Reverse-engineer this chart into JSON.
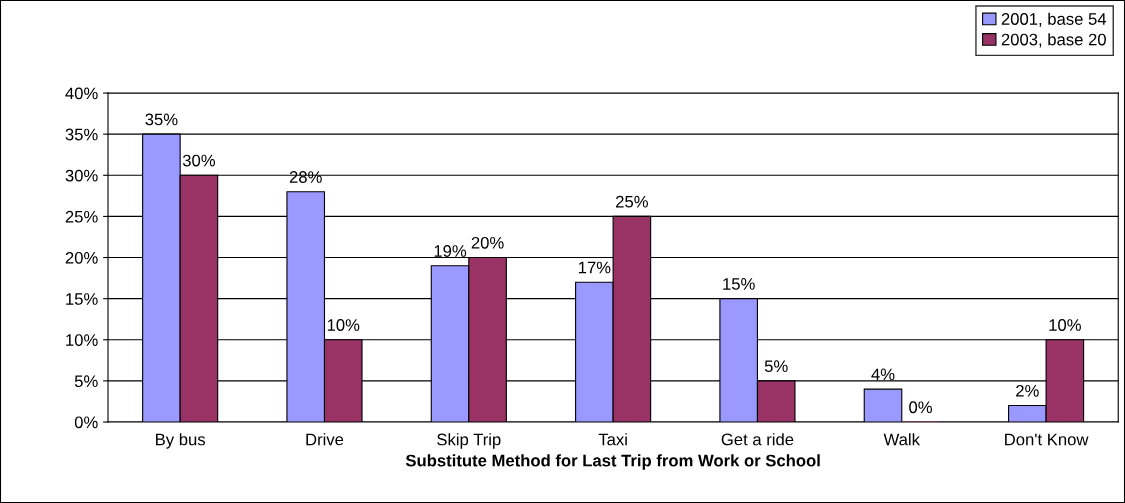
{
  "chart_data": {
    "type": "bar",
    "xlabel": "Substitute Method for Last Trip from Work or School",
    "categories": [
      "By bus",
      "Drive",
      "Skip Trip",
      "Taxi",
      "Get a ride",
      "Walk",
      "Don't Know"
    ],
    "series": [
      {
        "name": "2001, base 54",
        "color": "#9999ff",
        "values": [
          35,
          28,
          19,
          17,
          15,
          4,
          2
        ],
        "value_labels": [
          "35%",
          "28%",
          "19%",
          "17%",
          "15%",
          "4%",
          "2%"
        ]
      },
      {
        "name": "2003, base 20",
        "color": "#993366",
        "values": [
          30,
          10,
          20,
          25,
          5,
          0,
          10
        ],
        "value_labels": [
          "30%",
          "10%",
          "20%",
          "25%",
          "5%",
          "0%",
          "10%"
        ]
      }
    ],
    "ylim": [
      0,
      40
    ],
    "yticks": [
      {
        "value": 0,
        "label": "0%"
      },
      {
        "value": 5,
        "label": "5%"
      },
      {
        "value": 10,
        "label": "10%"
      },
      {
        "value": 15,
        "label": "15%"
      },
      {
        "value": 20,
        "label": "20%"
      },
      {
        "value": 25,
        "label": "25%"
      },
      {
        "value": 30,
        "label": "30%"
      },
      {
        "value": 35,
        "label": "35%"
      },
      {
        "value": 40,
        "label": "40%"
      }
    ],
    "grid": "y",
    "legend": "top right"
  }
}
